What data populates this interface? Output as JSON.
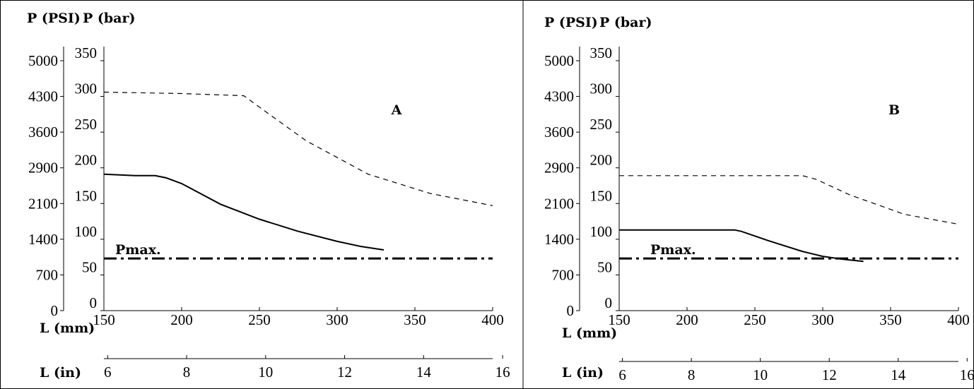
{
  "chart_data": [
    {
      "type": "line",
      "panel_label": "A",
      "y_left_label": "P (PSI)",
      "y_right_label": "P (bar)",
      "psi_ticks": [
        "5000",
        "4300",
        "3600",
        "2900",
        "2100",
        "1400",
        "700",
        "0"
      ],
      "bar_ticks": [
        "350",
        "300",
        "250",
        "200",
        "150",
        "100",
        "50",
        "0"
      ],
      "ylim": [
        0,
        350
      ],
      "xlabel_mm": "L (mm)",
      "xlabel_in": "L (in)",
      "x_mm_ticks": [
        150,
        200,
        250,
        300,
        350,
        400
      ],
      "x_in_ticks": [
        6,
        8,
        10,
        12,
        14,
        16
      ],
      "xlim": [
        150,
        400
      ],
      "pmax_label": "Pmax.",
      "pmax_value": 73,
      "series": [
        {
          "style": "dashed",
          "x": [
            150,
            200,
            240,
            250,
            280,
            320,
            360,
            400
          ],
          "y": [
            306,
            304,
            301,
            285,
            238,
            191,
            164,
            147
          ]
        },
        {
          "style": "solid",
          "x": [
            150,
            160,
            170,
            183,
            190,
            200,
            225,
            250,
            275,
            300,
            315,
            330
          ],
          "y": [
            191,
            190,
            189,
            189,
            186,
            178,
            149,
            128,
            111,
            97,
            90,
            85
          ]
        }
      ]
    },
    {
      "type": "line",
      "panel_label": "B",
      "y_left_label": "P (PSI)",
      "y_right_label": "P (bar)",
      "psi_ticks": [
        "5000",
        "4300",
        "3600",
        "2900",
        "2100",
        "1400",
        "700",
        "0"
      ],
      "bar_ticks": [
        "350",
        "300",
        "250",
        "200",
        "150",
        "100",
        "50",
        "0"
      ],
      "ylim": [
        0,
        350
      ],
      "xlabel_mm": "L (mm)",
      "xlabel_in": "L (in)",
      "x_mm_ticks": [
        150,
        200,
        250,
        300,
        350,
        400
      ],
      "x_in_ticks": [
        6,
        8,
        10,
        12,
        14,
        16
      ],
      "xlim": [
        150,
        400
      ],
      "pmax_label": "Pmax.",
      "pmax_value": 73,
      "series": [
        {
          "style": "dashed",
          "x": [
            150,
            200,
            285,
            295,
            320,
            360,
            400
          ],
          "y": [
            189,
            189,
            189,
            184,
            162,
            135,
            121
          ]
        },
        {
          "style": "solid",
          "x": [
            150,
            200,
            235,
            240,
            260,
            285,
            300,
            315,
            330
          ],
          "y": [
            113,
            113,
            113,
            111,
            98,
            83,
            76,
            72,
            69
          ]
        }
      ]
    }
  ]
}
